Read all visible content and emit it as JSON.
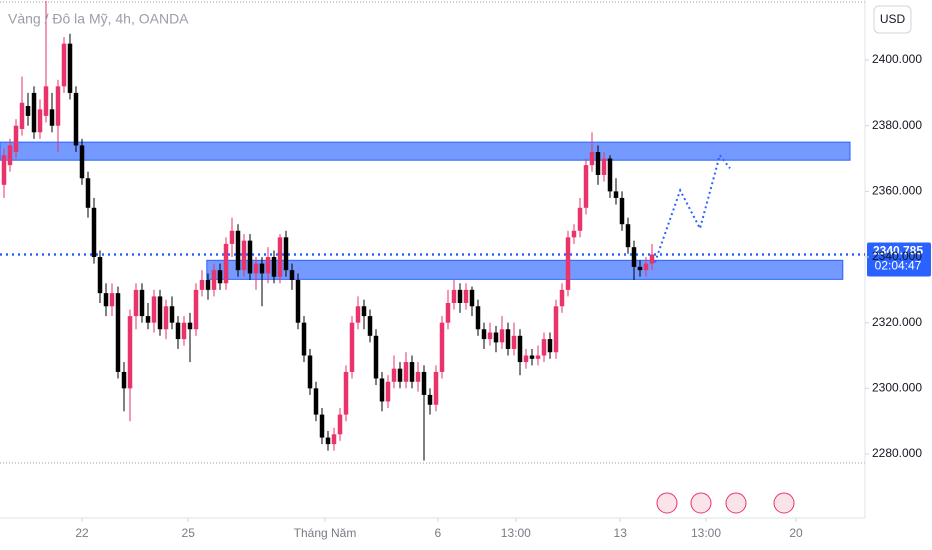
{
  "chart_data": {
    "type": "candlestick",
    "title": "Vàng / Đô la Mỹ, 4h, OANDA",
    "currency": "USD",
    "up_color": "#e8336b",
    "down_color": "#000000",
    "zone_color": "#2962ff",
    "ylim": [
      2260.5,
      2418.3
    ],
    "yticks": [
      {
        "value": 2280,
        "label": "2280.000"
      },
      {
        "value": 2300,
        "label": "2300.000"
      },
      {
        "value": 2320,
        "label": "2320.000"
      },
      {
        "value": 2340,
        "label": "2340.000"
      },
      {
        "value": 2360,
        "label": "2360.000"
      },
      {
        "value": 2380,
        "label": "2380.000"
      },
      {
        "value": 2400,
        "label": "2400.000"
      }
    ],
    "xlim": [
      -0.667,
      143.5
    ],
    "xticks": [
      {
        "value": 13,
        "label": "22"
      },
      {
        "value": 30.7,
        "label": "25"
      },
      {
        "value": 53.5,
        "label": "Tháng Năm"
      },
      {
        "value": 72.3,
        "label": "6"
      },
      {
        "value": 85.3,
        "label": "13:00"
      },
      {
        "value": 102.7,
        "label": "13"
      },
      {
        "value": 117,
        "label": "13:00"
      },
      {
        "value": 132,
        "label": "20"
      }
    ],
    "price": 2340.785,
    "countdown": "02:04:47",
    "zones": [
      {
        "top": 2375,
        "bottom": 2369.5,
        "x0": -0.667,
        "x1": 141
      },
      {
        "top": 2339,
        "bottom": 2333.2,
        "x0": 33.8,
        "x1": 139.8
      }
    ],
    "projection": {
      "x": [
        108.5,
        112.7,
        116,
        119.3,
        121
      ],
      "y": [
        2338.4,
        2360.3,
        2348.7,
        2371,
        2367
      ]
    },
    "candles": [
      [
        2362,
        2373,
        2358,
        2371
      ],
      [
        2368,
        2376,
        2366,
        2374
      ],
      [
        2372,
        2382,
        2370,
        2380
      ],
      [
        2379,
        2395,
        2377,
        2387
      ],
      [
        2386,
        2390,
        2380,
        2383
      ],
      [
        2390,
        2392,
        2376,
        2378
      ],
      [
        2378,
        2388,
        2376,
        2385
      ],
      [
        2383,
        2418,
        2381,
        2392
      ],
      [
        2385,
        2390,
        2378,
        2380
      ],
      [
        2380,
        2394,
        2372,
        2392
      ],
      [
        2392,
        2407,
        2390,
        2405
      ],
      [
        2405,
        2408,
        2388,
        2390
      ],
      [
        2390,
        2392,
        2372,
        2374
      ],
      [
        2374,
        2376,
        2362,
        2364
      ],
      [
        2364,
        2366,
        2352,
        2355
      ],
      [
        2355,
        2358,
        2338,
        2340
      ],
      [
        2340,
        2342,
        2326,
        2329
      ],
      [
        2329,
        2332,
        2322,
        2325
      ],
      [
        2325,
        2332,
        2322,
        2329
      ],
      [
        2329,
        2331,
        2303,
        2305
      ],
      [
        2305,
        2308,
        2293,
        2300
      ],
      [
        2300,
        2324,
        2290,
        2322
      ],
      [
        2322,
        2332,
        2318,
        2330
      ],
      [
        2330,
        2332,
        2320,
        2322
      ],
      [
        2322,
        2326,
        2318,
        2320
      ],
      [
        2320,
        2330,
        2317,
        2328
      ],
      [
        2328,
        2330,
        2316,
        2318
      ],
      [
        2318,
        2327,
        2315,
        2325
      ],
      [
        2325,
        2328,
        2318,
        2320
      ],
      [
        2320,
        2322,
        2312,
        2315
      ],
      [
        2315,
        2322,
        2313,
        2320
      ],
      [
        2320,
        2323,
        2308,
        2318
      ],
      [
        2318,
        2332,
        2316,
        2330
      ],
      [
        2330,
        2336,
        2328,
        2333
      ],
      [
        2333,
        2335,
        2327,
        2330
      ],
      [
        2330,
        2338,
        2328,
        2336
      ],
      [
        2336,
        2338,
        2330,
        2332
      ],
      [
        2332,
        2346,
        2330,
        2344
      ],
      [
        2344,
        2352,
        2340,
        2348
      ],
      [
        2348,
        2350,
        2334,
        2336
      ],
      [
        2336,
        2347,
        2334,
        2345
      ],
      [
        2345,
        2347,
        2333,
        2335
      ],
      [
        2335,
        2340,
        2330,
        2338
      ],
      [
        2338,
        2340,
        2325,
        2335
      ],
      [
        2335,
        2343,
        2332,
        2340
      ],
      [
        2340,
        2342,
        2332,
        2334
      ],
      [
        2334,
        2347,
        2332,
        2346
      ],
      [
        2346,
        2348,
        2334,
        2336
      ],
      [
        2336,
        2338,
        2330,
        2333
      ],
      [
        2333,
        2335,
        2318,
        2320
      ],
      [
        2320,
        2322,
        2308,
        2310
      ],
      [
        2310,
        2312,
        2298,
        2300
      ],
      [
        2300,
        2302,
        2290,
        2292
      ],
      [
        2292,
        2294,
        2283,
        2285
      ],
      [
        2285,
        2287,
        2281,
        2283
      ],
      [
        2283,
        2288,
        2281,
        2286
      ],
      [
        2286,
        2294,
        2284,
        2292
      ],
      [
        2292,
        2307,
        2290,
        2305
      ],
      [
        2305,
        2322,
        2303,
        2320
      ],
      [
        2320,
        2328,
        2318,
        2325
      ],
      [
        2325,
        2327,
        2318,
        2322
      ],
      [
        2322,
        2324,
        2314,
        2316
      ],
      [
        2316,
        2318,
        2301,
        2303
      ],
      [
        2303,
        2305,
        2293,
        2296
      ],
      [
        2296,
        2304,
        2294,
        2302
      ],
      [
        2302,
        2310,
        2300,
        2306
      ],
      [
        2306,
        2308,
        2300,
        2302
      ],
      [
        2302,
        2311,
        2300,
        2308
      ],
      [
        2308,
        2310,
        2300,
        2302
      ],
      [
        2302,
        2308,
        2299,
        2305
      ],
      [
        2305,
        2307,
        2278,
        2298
      ],
      [
        2298,
        2300,
        2292,
        2295
      ],
      [
        2295,
        2307,
        2293,
        2305
      ],
      [
        2305,
        2322,
        2303,
        2320
      ],
      [
        2320,
        2330,
        2318,
        2326
      ],
      [
        2326,
        2333,
        2324,
        2330
      ],
      [
        2330,
        2332,
        2323,
        2326
      ],
      [
        2326,
        2332,
        2324,
        2330
      ],
      [
        2330,
        2331,
        2322,
        2325
      ],
      [
        2325,
        2327,
        2316,
        2318
      ],
      [
        2318,
        2320,
        2312,
        2315
      ],
      [
        2315,
        2320,
        2313,
        2317
      ],
      [
        2317,
        2319,
        2311,
        2314
      ],
      [
        2314,
        2322,
        2312,
        2318
      ],
      [
        2318,
        2320,
        2310,
        2312
      ],
      [
        2312,
        2320,
        2310,
        2316
      ],
      [
        2316,
        2318,
        2304,
        2308
      ],
      [
        2308,
        2312,
        2306,
        2310
      ],
      [
        2310,
        2312,
        2307,
        2309
      ],
      [
        2309,
        2313,
        2307,
        2310
      ],
      [
        2310,
        2317,
        2308,
        2315
      ],
      [
        2315,
        2317,
        2309,
        2311
      ],
      [
        2311,
        2327,
        2309,
        2325
      ],
      [
        2325,
        2332,
        2323,
        2330
      ],
      [
        2330,
        2348,
        2328,
        2346
      ],
      [
        2346,
        2350,
        2344,
        2348
      ],
      [
        2348,
        2358,
        2346,
        2355
      ],
      [
        2355,
        2370,
        2353,
        2368
      ],
      [
        2368,
        2378,
        2366,
        2372
      ],
      [
        2372,
        2374,
        2362,
        2365
      ],
      [
        2365,
        2372,
        2363,
        2370
      ],
      [
        2370,
        2371,
        2358,
        2360
      ],
      [
        2360,
        2364,
        2356,
        2358
      ],
      [
        2358,
        2360,
        2348,
        2350
      ],
      [
        2350,
        2352,
        2341,
        2343
      ],
      [
        2343,
        2345,
        2333,
        2337
      ],
      [
        2337,
        2339,
        2334,
        2336
      ],
      [
        2336,
        2340,
        2334,
        2338
      ],
      [
        2338,
        2344,
        2336,
        2340.785
      ]
    ]
  }
}
